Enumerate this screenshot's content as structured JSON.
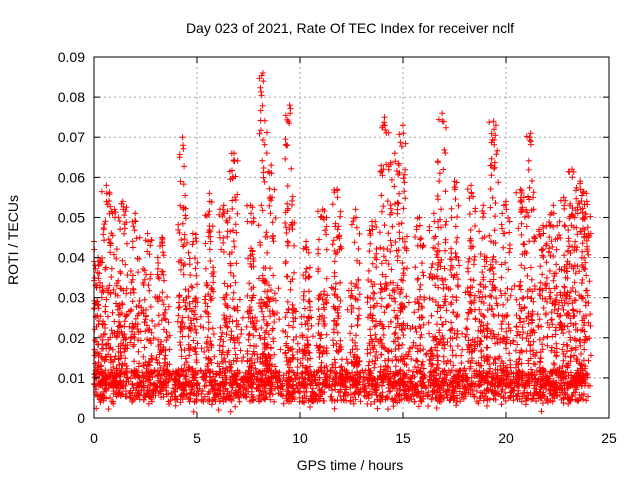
{
  "chart_data": {
    "type": "scatter",
    "title": "Day 023 of 2021, Rate Of TEC Index for receiver nclf",
    "xlabel": "GPS time / hours",
    "ylabel": "ROTI / TECUs",
    "xlim": [
      0,
      25
    ],
    "ylim": [
      0,
      0.09
    ],
    "xticks": [
      0,
      5,
      10,
      15,
      20,
      25
    ],
    "yticks": [
      0,
      0.01,
      0.02,
      0.03,
      0.04,
      0.05,
      0.06,
      0.07,
      0.08,
      0.09
    ],
    "xtick_labels": [
      "0",
      "5",
      "10",
      "15",
      "20",
      "25"
    ],
    "ytick_labels": [
      "0",
      "0.01",
      "0.02",
      "0.03",
      "0.04",
      "0.05",
      "0.06",
      "0.07",
      "0.08",
      "0.09"
    ],
    "grid": true,
    "marker": "+",
    "series": [
      {
        "name": "ROTI",
        "color": "#ff0000",
        "x_range": [
          0,
          24
        ],
        "baseline": [
          0.004,
          0.012
        ],
        "peaks": [
          [
            0.0,
            0.044
          ],
          [
            0.2,
            0.04
          ],
          [
            0.6,
            0.058
          ],
          [
            1.0,
            0.052
          ],
          [
            1.4,
            0.054
          ],
          [
            2.0,
            0.051
          ],
          [
            2.6,
            0.046
          ],
          [
            3.3,
            0.045
          ],
          [
            4.3,
            0.07
          ],
          [
            4.8,
            0.046
          ],
          [
            5.6,
            0.056
          ],
          [
            6.3,
            0.053
          ],
          [
            6.8,
            0.066
          ],
          [
            7.6,
            0.053
          ],
          [
            8.2,
            0.086
          ],
          [
            8.6,
            0.063
          ],
          [
            9.5,
            0.078
          ],
          [
            10.3,
            0.044
          ],
          [
            11.1,
            0.052
          ],
          [
            11.8,
            0.057
          ],
          [
            12.7,
            0.052
          ],
          [
            13.5,
            0.049
          ],
          [
            14.1,
            0.075
          ],
          [
            14.6,
            0.066
          ],
          [
            15.0,
            0.073
          ],
          [
            15.8,
            0.05
          ],
          [
            16.5,
            0.051
          ],
          [
            16.9,
            0.076
          ],
          [
            17.5,
            0.059
          ],
          [
            18.3,
            0.058
          ],
          [
            18.9,
            0.053
          ],
          [
            19.4,
            0.074
          ],
          [
            20.0,
            0.054
          ],
          [
            20.7,
            0.057
          ],
          [
            21.2,
            0.071
          ],
          [
            21.8,
            0.048
          ],
          [
            22.3,
            0.053
          ],
          [
            22.8,
            0.055
          ],
          [
            23.2,
            0.062
          ],
          [
            23.6,
            0.059
          ],
          [
            23.9,
            0.056
          ]
        ]
      }
    ]
  }
}
